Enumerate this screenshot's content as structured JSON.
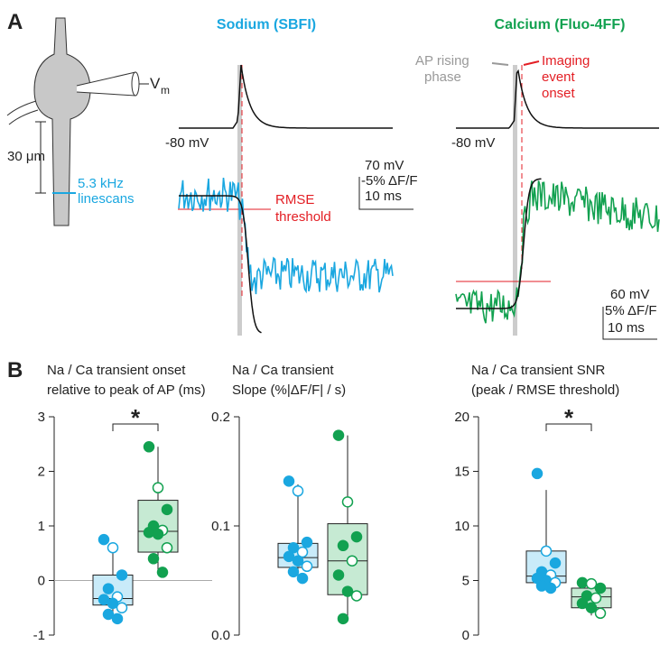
{
  "panel_a": {
    "label": "A",
    "sodium_title": "Sodium (SBFI)",
    "calcium_title": "Calcium (Fluo-4FF)",
    "vm": "V",
    "vm_sub": "m",
    "distance": "30 μm",
    "linescan": [
      "5.3 kHz",
      "linescans"
    ],
    "rest_na": "-80 mV",
    "rest_ca": "-80 mV",
    "rmse": [
      "RMSE",
      "threshold"
    ],
    "scale_na": [
      "70 mV",
      "-5% ΔF/F",
      "10 ms"
    ],
    "ap_rising": [
      "AP rising",
      "phase"
    ],
    "event_onset": [
      "Imaging",
      "event",
      "onset"
    ],
    "scale_ca": [
      "60 mV",
      "5% ΔF/F",
      "10 ms"
    ]
  },
  "panel_b": {
    "label": "B"
  },
  "chart_data": [
    {
      "type": "box",
      "title": [
        "Na / Ca transient onset",
        "relative to peak of AP (ms)"
      ],
      "ylim": [
        -1,
        3
      ],
      "yticks": [
        -1,
        0,
        1,
        2,
        3
      ],
      "annotation": "*",
      "series": [
        {
          "color": "#1aa7e0",
          "fill": "#c9ebf9",
          "whislo": -0.7,
          "q1": -0.45,
          "med": -0.33,
          "q3": 0.1,
          "whishi": 0.7,
          "points": [
            0.75,
            0.6,
            0.1,
            -0.15,
            -0.3,
            -0.35,
            -0.42,
            -0.5,
            -0.62,
            -0.7
          ]
        },
        {
          "color": "#12a150",
          "fill": "#c6ead3",
          "whislo": 0.15,
          "q1": 0.52,
          "med": 0.9,
          "q3": 1.47,
          "whishi": 2.45,
          "points": [
            2.45,
            1.7,
            1.3,
            1.0,
            0.92,
            0.88,
            0.85,
            0.6,
            0.4,
            0.15
          ]
        }
      ]
    },
    {
      "type": "box",
      "title": [
        "Na / Ca transient",
        "Slope (%|ΔF/F| / s)"
      ],
      "ylim": [
        0,
        0.2
      ],
      "yticks": [
        {
          "value": 0,
          "label": "0.0"
        },
        0.1,
        0.2
      ],
      "series": [
        {
          "color": "#1aa7e0",
          "fill": "#c9ebf9",
          "whislo": 0.052,
          "q1": 0.062,
          "med": 0.071,
          "q3": 0.084,
          "whishi": 0.138,
          "points": [
            0.141,
            0.132,
            0.085,
            0.08,
            0.076,
            0.072,
            0.068,
            0.063,
            0.058,
            0.052
          ]
        },
        {
          "color": "#12a150",
          "fill": "#c6ead3",
          "whislo": 0.015,
          "q1": 0.037,
          "med": 0.068,
          "q3": 0.102,
          "whishi": 0.183,
          "points": [
            0.183,
            0.122,
            0.09,
            0.082,
            0.068,
            0.055,
            0.04,
            0.036,
            0.015
          ]
        }
      ]
    },
    {
      "type": "box",
      "title": [
        "Na / Ca transient SNR",
        "(peak / RMSE threshold)"
      ],
      "ylim": [
        0,
        20
      ],
      "yticks": [
        0,
        5,
        10,
        15,
        20
      ],
      "annotation": "*",
      "series": [
        {
          "color": "#1aa7e0",
          "fill": "#c9ebf9",
          "whislo": 4.3,
          "q1": 4.8,
          "med": 5.4,
          "q3": 7.7,
          "whishi": 13.3,
          "points": [
            14.8,
            7.7,
            6.6,
            5.8,
            5.5,
            5.2,
            5.0,
            4.8,
            4.5,
            4.3
          ]
        },
        {
          "color": "#12a150",
          "fill": "#c6ead3",
          "whislo": 1.8,
          "q1": 2.5,
          "med": 3.5,
          "q3": 4.3,
          "whishi": 4.8,
          "points": [
            4.8,
            4.7,
            4.3,
            3.6,
            3.4,
            2.9,
            2.5,
            2.0
          ]
        }
      ]
    }
  ]
}
